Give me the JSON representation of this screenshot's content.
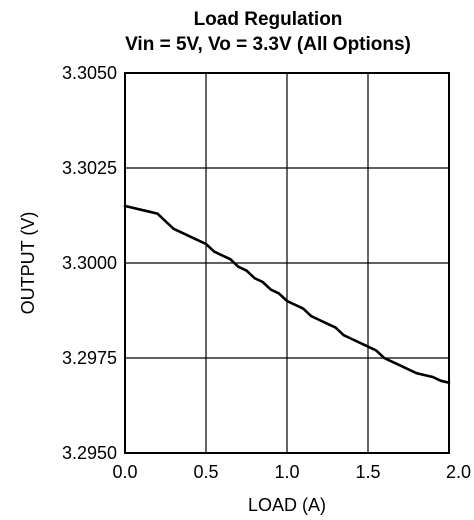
{
  "chart_data": {
    "type": "line",
    "title": "Load Regulation",
    "subtitle": "Vin = 5V, Vo = 3.3V (All Options)",
    "xlabel": "LOAD (A)",
    "ylabel": "OUTPUT (V)",
    "xlim": [
      0,
      2.0
    ],
    "ylim": [
      3.295,
      3.305
    ],
    "x_ticks": [
      "0.0",
      "0.5",
      "1.0",
      "1.5",
      "2.0"
    ],
    "y_ticks": [
      "3.2950",
      "3.2975",
      "3.3000",
      "3.3025",
      "3.3050"
    ],
    "grid": true,
    "series": [
      {
        "color": "#000000",
        "points": [
          [
            0.0,
            3.3015
          ],
          [
            0.05,
            3.30145
          ],
          [
            0.1,
            3.3014
          ],
          [
            0.15,
            3.30135
          ],
          [
            0.2,
            3.3013
          ],
          [
            0.25,
            3.3011
          ],
          [
            0.3,
            3.3009
          ],
          [
            0.35,
            3.3008
          ],
          [
            0.4,
            3.3007
          ],
          [
            0.45,
            3.3006
          ],
          [
            0.5,
            3.3005
          ],
          [
            0.55,
            3.3003
          ],
          [
            0.6,
            3.3002
          ],
          [
            0.65,
            3.3001
          ],
          [
            0.7,
            3.2999
          ],
          [
            0.75,
            3.2998
          ],
          [
            0.8,
            3.2996
          ],
          [
            0.85,
            3.2995
          ],
          [
            0.9,
            3.2993
          ],
          [
            0.95,
            3.2992
          ],
          [
            1.0,
            3.299
          ],
          [
            1.05,
            3.2989
          ],
          [
            1.1,
            3.2988
          ],
          [
            1.15,
            3.2986
          ],
          [
            1.2,
            3.2985
          ],
          [
            1.25,
            3.2984
          ],
          [
            1.3,
            3.2983
          ],
          [
            1.35,
            3.2981
          ],
          [
            1.4,
            3.298
          ],
          [
            1.45,
            3.2979
          ],
          [
            1.5,
            3.2978
          ],
          [
            1.55,
            3.2977
          ],
          [
            1.6,
            3.2975
          ],
          [
            1.65,
            3.2974
          ],
          [
            1.7,
            3.2973
          ],
          [
            1.75,
            3.2972
          ],
          [
            1.8,
            3.2971
          ],
          [
            1.85,
            3.29705
          ],
          [
            1.9,
            3.297
          ],
          [
            1.95,
            3.2969
          ],
          [
            2.0,
            3.29685
          ]
        ]
      }
    ]
  }
}
